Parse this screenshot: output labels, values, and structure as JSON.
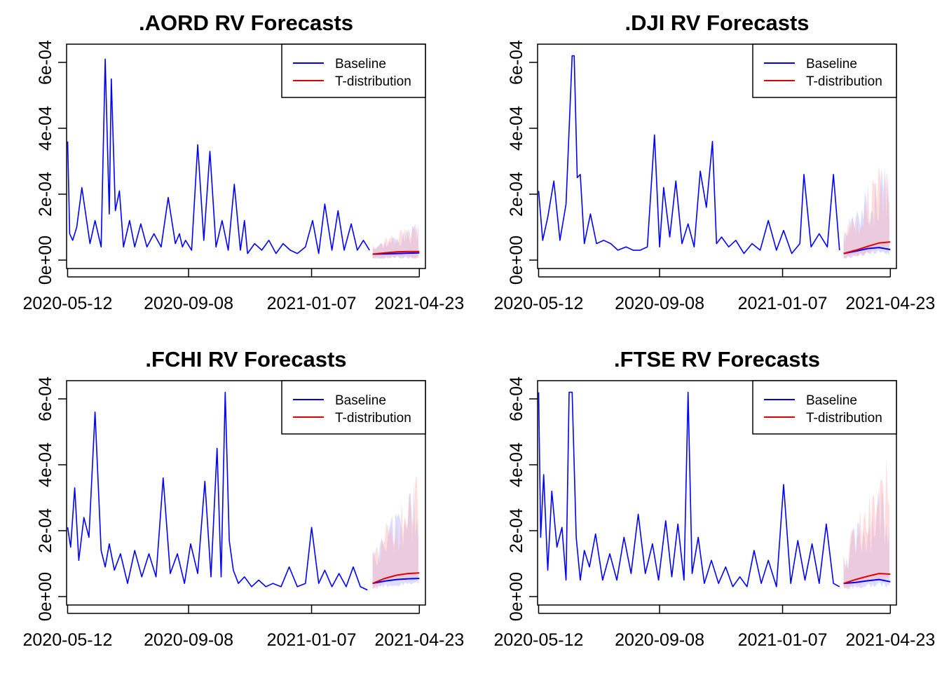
{
  "colors": {
    "baseline": "#0000ff",
    "tdist": "#e00000",
    "band_baseline": "#b4b4ff",
    "band_tdist": "#ffb4b4"
  },
  "chart_data": [
    {
      "type": "line",
      "title": ".AORD RV Forecasts",
      "x_tick_labels": [
        "2020-05-12",
        "2020-09-08",
        "2021-01-07",
        "2021-04-23"
      ],
      "xlim": [
        "2020-05-12",
        "2021-04-23"
      ],
      "ylim": [
        0,
        0.00062
      ],
      "y_tick_labels": [
        "0e+00",
        "2e-04",
        "4e-04",
        "6e-04"
      ],
      "legend": {
        "position": "top-right",
        "entries": [
          "Baseline",
          "T-distribution"
        ]
      },
      "forecast_start": "2021-03-08",
      "series": [
        {
          "name": "Baseline",
          "color": "#0000ff",
          "x": [
            "2020-05-12",
            "2020-05-14",
            "2020-05-17",
            "2020-05-21",
            "2020-05-26",
            "2020-06-03",
            "2020-06-08",
            "2020-06-14",
            "2020-06-18",
            "2020-06-22",
            "2020-06-24",
            "2020-06-28",
            "2020-07-02",
            "2020-07-06",
            "2020-07-12",
            "2020-07-17",
            "2020-07-23",
            "2020-07-29",
            "2020-08-05",
            "2020-08-12",
            "2020-08-19",
            "2020-08-26",
            "2020-08-30",
            "2020-09-02",
            "2020-09-05",
            "2020-09-11",
            "2020-09-17",
            "2020-09-23",
            "2020-09-29",
            "2020-10-05",
            "2020-10-11",
            "2020-10-17",
            "2020-10-23",
            "2020-10-29",
            "2020-11-02",
            "2020-11-05",
            "2020-11-12",
            "2020-11-19",
            "2020-11-26",
            "2020-12-03",
            "2020-12-10",
            "2020-12-17",
            "2020-12-24",
            "2021-01-01",
            "2021-01-08",
            "2021-01-14",
            "2021-01-20",
            "2021-01-27",
            "2021-02-02",
            "2021-02-08",
            "2021-02-15",
            "2021-02-21",
            "2021-02-27",
            "2021-03-05"
          ],
          "y": [
            0.00036,
            8e-05,
            6e-05,
            0.0001,
            0.00022,
            5e-05,
            0.00012,
            4e-05,
            0.00061,
            0.00014,
            0.00055,
            0.00015,
            0.00021,
            4e-05,
            0.00012,
            4e-05,
            0.00011,
            4e-05,
            8e-05,
            4e-05,
            0.00019,
            5e-05,
            8e-05,
            4e-05,
            6e-05,
            3e-05,
            0.00035,
            6e-05,
            0.00033,
            4e-05,
            0.00012,
            3e-05,
            0.00023,
            3e-05,
            0.00012,
            2e-05,
            5e-05,
            3e-05,
            6e-05,
            2e-05,
            5e-05,
            3e-05,
            2e-05,
            4e-05,
            0.00012,
            2e-05,
            0.00017,
            3e-05,
            0.00015,
            3e-05,
            0.00011,
            3e-05,
            6e-05,
            3e-05
          ]
        },
        {
          "name": "Baseline forecast",
          "color": "#0000ff",
          "x": [
            "2021-03-08",
            "2021-03-20",
            "2021-04-01",
            "2021-04-12",
            "2021-04-23"
          ],
          "y": [
            1.8e-05,
            1.9e-05,
            2e-05,
            2.1e-05,
            2.2e-05
          ]
        },
        {
          "name": "T-distribution",
          "color": "#e00000",
          "x": [
            "2021-03-08",
            "2021-03-20",
            "2021-04-01",
            "2021-04-12",
            "2021-04-23"
          ],
          "y": [
            1.8e-05,
            2.2e-05,
            2.5e-05,
            2.6e-05,
            2.6e-05
          ]
        }
      ]
    },
    {
      "type": "line",
      "title": ".DJI RV Forecasts",
      "x_tick_labels": [
        "2020-05-12",
        "2020-09-08",
        "2021-01-07",
        "2021-04-23"
      ],
      "xlim": [
        "2020-05-12",
        "2021-04-23"
      ],
      "ylim": [
        0,
        0.00062
      ],
      "y_tick_labels": [
        "0e+00",
        "2e-04",
        "4e-04",
        "6e-04"
      ],
      "legend": {
        "position": "top-right",
        "entries": [
          "Baseline",
          "T-distribution"
        ]
      },
      "forecast_start": "2021-03-08",
      "series": [
        {
          "name": "Baseline",
          "color": "#0000ff",
          "x": [
            "2020-05-12",
            "2020-05-16",
            "2020-05-21",
            "2020-05-27",
            "2020-06-02",
            "2020-06-08",
            "2020-06-14",
            "2020-06-16",
            "2020-06-19",
            "2020-06-22",
            "2020-06-26",
            "2020-07-02",
            "2020-07-08",
            "2020-07-15",
            "2020-07-22",
            "2020-07-29",
            "2020-08-06",
            "2020-08-13",
            "2020-08-20",
            "2020-08-27",
            "2020-09-03",
            "2020-09-08",
            "2020-09-12",
            "2020-09-18",
            "2020-09-24",
            "2020-09-30",
            "2020-10-06",
            "2020-10-12",
            "2020-10-18",
            "2020-10-24",
            "2020-10-30",
            "2020-11-03",
            "2020-11-08",
            "2020-11-15",
            "2020-11-22",
            "2020-11-30",
            "2020-12-08",
            "2020-12-16",
            "2020-12-24",
            "2021-01-01",
            "2021-01-08",
            "2021-01-16",
            "2021-01-24",
            "2021-01-28",
            "2021-02-04",
            "2021-02-12",
            "2021-02-20",
            "2021-02-26",
            "2021-03-04"
          ],
          "y": [
            0.00021,
            6e-05,
            0.00013,
            0.00024,
            6e-05,
            0.00017,
            0.00062,
            0.00062,
            0.00025,
            0.00026,
            5e-05,
            0.00014,
            5e-05,
            6e-05,
            5e-05,
            3e-05,
            4e-05,
            3e-05,
            3e-05,
            4e-05,
            0.00038,
            4e-05,
            0.00022,
            7e-05,
            0.00024,
            5e-05,
            0.00011,
            4e-05,
            0.00027,
            0.00016,
            0.00036,
            5e-05,
            7e-05,
            4e-05,
            6e-05,
            2e-05,
            5e-05,
            3e-05,
            0.00012,
            3e-05,
            9e-05,
            2e-05,
            5e-05,
            0.00026,
            4e-05,
            8e-05,
            4e-05,
            0.00026,
            3e-05
          ]
        },
        {
          "name": "Baseline forecast",
          "color": "#0000ff",
          "x": [
            "2021-03-08",
            "2021-03-20",
            "2021-04-01",
            "2021-04-12",
            "2021-04-23"
          ],
          "y": [
            2e-05,
            2.7e-05,
            3.5e-05,
            3.8e-05,
            3.2e-05
          ]
        },
        {
          "name": "T-distribution",
          "color": "#e00000",
          "x": [
            "2021-03-08",
            "2021-03-20",
            "2021-04-01",
            "2021-04-12",
            "2021-04-23"
          ],
          "y": [
            2e-05,
            3e-05,
            4.2e-05,
            5.2e-05,
            5.5e-05
          ]
        }
      ]
    },
    {
      "type": "line",
      "title": ".FCHI RV Forecasts",
      "x_tick_labels": [
        "2020-05-12",
        "2020-09-08",
        "2021-01-07",
        "2021-04-23"
      ],
      "xlim": [
        "2020-05-12",
        "2021-04-23"
      ],
      "ylim": [
        0,
        0.00062
      ],
      "y_tick_labels": [
        "0e+00",
        "2e-04",
        "4e-04",
        "6e-04"
      ],
      "legend": {
        "position": "top-right",
        "entries": [
          "Baseline",
          "T-distribution"
        ]
      },
      "forecast_start": "2021-03-08",
      "series": [
        {
          "name": "Baseline",
          "color": "#0000ff",
          "x": [
            "2020-05-12",
            "2020-05-15",
            "2020-05-19",
            "2020-05-23",
            "2020-05-28",
            "2020-06-02",
            "2020-06-08",
            "2020-06-14",
            "2020-06-18",
            "2020-06-22",
            "2020-06-27",
            "2020-07-03",
            "2020-07-10",
            "2020-07-17",
            "2020-07-24",
            "2020-07-31",
            "2020-08-07",
            "2020-08-14",
            "2020-08-21",
            "2020-08-28",
            "2020-09-04",
            "2020-09-10",
            "2020-09-17",
            "2020-09-24",
            "2020-09-30",
            "2020-10-06",
            "2020-10-10",
            "2020-10-14",
            "2020-10-18",
            "2020-10-22",
            "2020-10-27",
            "2020-11-02",
            "2020-11-09",
            "2020-11-16",
            "2020-11-23",
            "2020-11-30",
            "2020-12-08",
            "2020-12-16",
            "2020-12-24",
            "2021-01-01",
            "2021-01-07",
            "2021-01-14",
            "2021-01-20",
            "2021-01-27",
            "2021-02-03",
            "2021-02-10",
            "2021-02-17",
            "2021-02-24",
            "2021-03-03"
          ],
          "y": [
            0.00021,
            0.00015,
            0.00033,
            0.00011,
            0.00024,
            0.00018,
            0.00056,
            0.00014,
            9e-05,
            0.00016,
            8e-05,
            0.00013,
            4e-05,
            0.00014,
            6e-05,
            0.00013,
            6e-05,
            0.00036,
            7e-05,
            0.00013,
            4e-05,
            0.00016,
            7e-05,
            0.00035,
            6e-05,
            0.00045,
            6e-05,
            0.00062,
            0.00017,
            8e-05,
            4e-05,
            6e-05,
            3e-05,
            5e-05,
            3e-05,
            4e-05,
            3e-05,
            9e-05,
            3e-05,
            4e-05,
            0.00021,
            4e-05,
            8e-05,
            3e-05,
            7e-05,
            3e-05,
            9e-05,
            3e-05,
            2e-05
          ]
        },
        {
          "name": "Baseline forecast",
          "color": "#0000ff",
          "x": [
            "2021-03-08",
            "2021-03-20",
            "2021-04-01",
            "2021-04-12",
            "2021-04-23"
          ],
          "y": [
            4e-05,
            4.7e-05,
            5.2e-05,
            5.4e-05,
            5.5e-05
          ]
        },
        {
          "name": "T-distribution",
          "color": "#e00000",
          "x": [
            "2021-03-08",
            "2021-03-20",
            "2021-04-01",
            "2021-04-12",
            "2021-04-23"
          ],
          "y": [
            4e-05,
            5.5e-05,
            6.5e-05,
            7e-05,
            7.2e-05
          ]
        }
      ]
    },
    {
      "type": "line",
      "title": ".FTSE RV Forecasts",
      "x_tick_labels": [
        "2020-05-12",
        "2020-09-08",
        "2021-01-07",
        "2021-04-23"
      ],
      "xlim": [
        "2020-05-12",
        "2021-04-23"
      ],
      "ylim": [
        0,
        0.00062
      ],
      "y_tick_labels": [
        "0e+00",
        "2e-04",
        "4e-04",
        "6e-04"
      ],
      "legend": {
        "position": "top-right",
        "entries": [
          "Baseline",
          "T-distribution"
        ]
      },
      "forecast_start": "2021-03-08",
      "series": [
        {
          "name": "Baseline",
          "color": "#0000ff",
          "x": [
            "2020-05-12",
            "2020-05-14",
            "2020-05-17",
            "2020-05-21",
            "2020-05-25",
            "2020-05-30",
            "2020-06-04",
            "2020-06-08",
            "2020-06-11",
            "2020-06-14",
            "2020-06-18",
            "2020-06-22",
            "2020-06-26",
            "2020-07-01",
            "2020-07-07",
            "2020-07-14",
            "2020-07-21",
            "2020-07-28",
            "2020-08-04",
            "2020-08-11",
            "2020-08-18",
            "2020-08-25",
            "2020-09-01",
            "2020-09-07",
            "2020-09-14",
            "2020-09-20",
            "2020-09-26",
            "2020-10-02",
            "2020-10-06",
            "2020-10-10",
            "2020-10-16",
            "2020-10-22",
            "2020-10-29",
            "2020-11-05",
            "2020-11-12",
            "2020-11-19",
            "2020-11-26",
            "2020-12-03",
            "2020-12-10",
            "2020-12-17",
            "2020-12-24",
            "2021-01-01",
            "2021-01-08",
            "2021-01-15",
            "2021-01-22",
            "2021-01-29",
            "2021-02-05",
            "2021-02-12",
            "2021-02-19",
            "2021-02-26",
            "2021-03-04"
          ],
          "y": [
            0.00062,
            0.00018,
            0.00037,
            8e-05,
            0.00032,
            0.00015,
            0.00021,
            5e-05,
            0.00062,
            0.00062,
            0.00018,
            5e-05,
            0.00014,
            9e-05,
            0.00019,
            5e-05,
            0.00013,
            5e-05,
            0.00018,
            7e-05,
            0.00025,
            7e-05,
            0.00016,
            5e-05,
            0.00023,
            6e-05,
            0.00022,
            5e-05,
            0.00062,
            7e-05,
            0.00018,
            4e-05,
            0.00011,
            4e-05,
            9e-05,
            3e-05,
            6e-05,
            3e-05,
            0.00014,
            4e-05,
            0.00011,
            3e-05,
            0.00034,
            4e-05,
            0.00017,
            5e-05,
            0.00016,
            4e-05,
            0.00022,
            4e-05,
            3e-05
          ]
        },
        {
          "name": "Baseline forecast",
          "color": "#0000ff",
          "x": [
            "2021-03-08",
            "2021-03-20",
            "2021-04-01",
            "2021-04-12",
            "2021-04-23"
          ],
          "y": [
            4e-05,
            4.3e-05,
            4.8e-05,
            5.2e-05,
            4.5e-05
          ]
        },
        {
          "name": "T-distribution",
          "color": "#e00000",
          "x": [
            "2021-03-08",
            "2021-03-20",
            "2021-04-01",
            "2021-04-12",
            "2021-04-23"
          ],
          "y": [
            4e-05,
            5.2e-05,
            6.2e-05,
            7e-05,
            6.8e-05
          ]
        }
      ]
    }
  ]
}
